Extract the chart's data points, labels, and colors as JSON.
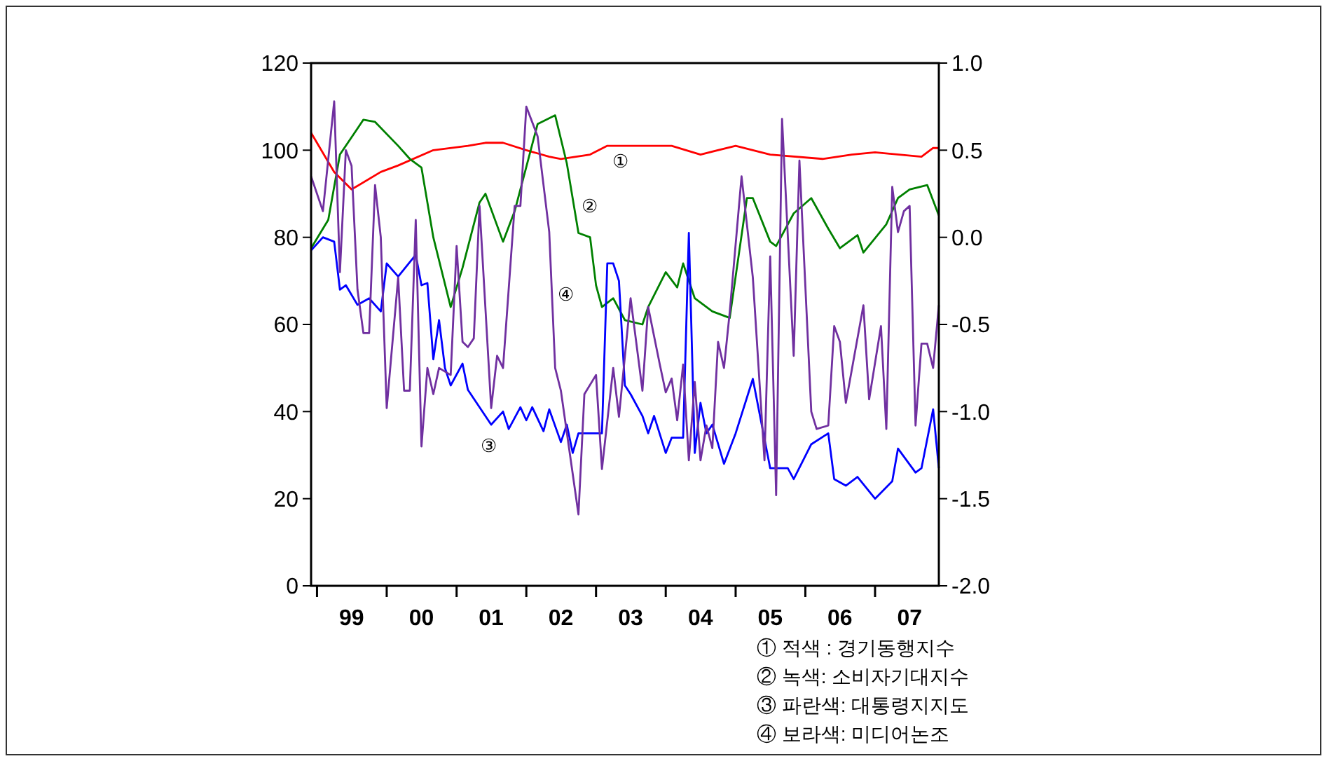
{
  "chart_data": {
    "type": "line",
    "xlim": [
      "1998-12",
      "2007-12"
    ],
    "xticks": [
      {
        "value": "1999-01",
        "label": null
      },
      {
        "value": "1999-07",
        "label": "99"
      },
      {
        "value": "2000-01",
        "label": null
      },
      {
        "value": "2000-07",
        "label": "00"
      },
      {
        "value": "2001-01",
        "label": null
      },
      {
        "value": "2001-07",
        "label": "01"
      },
      {
        "value": "2002-01",
        "label": null
      },
      {
        "value": "2002-07",
        "label": "02"
      },
      {
        "value": "2003-01",
        "label": null
      },
      {
        "value": "2003-07",
        "label": "03"
      },
      {
        "value": "2004-01",
        "label": null
      },
      {
        "value": "2004-07",
        "label": "04"
      },
      {
        "value": "2005-01",
        "label": null
      },
      {
        "value": "2005-07",
        "label": "05"
      },
      {
        "value": "2006-01",
        "label": null
      },
      {
        "value": "2006-07",
        "label": "06"
      },
      {
        "value": "2007-01",
        "label": null
      },
      {
        "value": "2007-07",
        "label": "07"
      }
    ],
    "ylim": [
      0,
      120
    ],
    "yticks": [
      0,
      20,
      40,
      60,
      80,
      100,
      120
    ],
    "y2lim": [
      -2,
      1
    ],
    "y2ticks": [
      {
        "value": -2,
        "label": "-2.0"
      },
      {
        "value": -1.5,
        "label": "-1.5"
      },
      {
        "value": -1,
        "label": "-1.0"
      },
      {
        "value": -0.5,
        "label": "-0.5"
      },
      {
        "value": 0,
        "label": "0.0"
      },
      {
        "value": 0.5,
        "label": "0.5"
      },
      {
        "value": 1,
        "label": "1.0"
      }
    ],
    "series": [
      {
        "name": "①",
        "color": "#ff0000",
        "x": [
          "1998-12",
          "1999-04",
          "1999-07",
          "1999-12",
          "2000-03",
          "2000-09",
          "2001-03",
          "2001-06",
          "2001-09",
          "2002-01",
          "2002-05",
          "2002-07",
          "2002-12",
          "2003-03",
          "2003-08",
          "2004-02",
          "2004-07",
          "2005-01",
          "2005-07",
          "2006-04",
          "2006-09",
          "2007-01",
          "2007-09",
          "2007-11",
          "2007-12"
        ],
        "values": [
          104,
          95,
          91,
          95,
          96.5,
          100,
          101,
          101.7,
          101.7,
          100,
          98.5,
          98,
          99,
          101,
          101,
          101,
          99,
          101,
          99,
          98,
          99,
          99.5,
          98.5,
          100.5,
          100.5
        ]
      },
      {
        "name": "②",
        "color": "#008000",
        "x": [
          "1998-12",
          "1999-03",
          "1999-05",
          "1999-09",
          "1999-11",
          "2000-03",
          "2000-05",
          "2000-07",
          "2000-09",
          "2000-12",
          "2001-02",
          "2001-05",
          "2001-06",
          "2001-09",
          "2001-11",
          "2002-03",
          "2002-06",
          "2002-08",
          "2002-10",
          "2002-12",
          "2003-01",
          "2003-02",
          "2003-04",
          "2003-06",
          "2003-09",
          "2003-10",
          "2004-01",
          "2004-03",
          "2004-04",
          "2004-06",
          "2004-09",
          "2004-12",
          "2005-01",
          "2005-03",
          "2005-04",
          "2005-07",
          "2005-08",
          "2005-11",
          "2006-02",
          "2006-05",
          "2006-07",
          "2006-10",
          "2006-11",
          "2007-03",
          "2007-05",
          "2007-07",
          "2007-10",
          "2007-12"
        ],
        "values": [
          77.5,
          84,
          99,
          107,
          106.5,
          101,
          98,
          96,
          80,
          64,
          73,
          88,
          90,
          79,
          86,
          106,
          108,
          97,
          81,
          80,
          69,
          64,
          66,
          61,
          60,
          64,
          72,
          68.5,
          74,
          66,
          63,
          61.5,
          71,
          89,
          89,
          79,
          78,
          85.5,
          89,
          82,
          77.5,
          80.5,
          76.5,
          83,
          89,
          91,
          92,
          85
        ]
      },
      {
        "name": "③",
        "color": "#0000ff",
        "x": [
          "1998-12",
          "1999-02",
          "1999-04",
          "1999-05",
          "1999-06",
          "1999-08",
          "1999-10",
          "1999-12",
          "2000-01",
          "2000-03",
          "2000-06",
          "2000-07",
          "2000-08",
          "2000-09",
          "2000-10",
          "2000-11",
          "2000-12",
          "2001-02",
          "2001-03",
          "2001-07",
          "2001-09",
          "2001-10",
          "2001-12",
          "2002-01",
          "2002-02",
          "2002-04",
          "2002-05",
          "2002-07",
          "2002-08",
          "2002-09",
          "2002-10",
          "2003-02",
          "2003-03",
          "2003-04",
          "2003-05",
          "2003-06",
          "2003-07",
          "2003-09",
          "2003-10",
          "2003-11",
          "2004-01",
          "2004-02",
          "2004-04",
          "2004-05",
          "2004-06",
          "2004-07",
          "2004-08",
          "2004-09",
          "2004-11",
          "2005-01",
          "2005-04",
          "2005-07",
          "2005-10",
          "2005-11",
          "2006-02",
          "2006-05",
          "2006-06",
          "2006-08",
          "2006-10",
          "2007-01",
          "2007-04",
          "2007-05",
          "2007-08",
          "2007-09",
          "2007-11",
          "2007-12"
        ],
        "values": [
          77,
          80,
          79,
          68,
          69,
          64.5,
          66,
          63,
          74,
          71,
          76,
          69,
          69.5,
          52,
          61,
          50,
          46,
          51,
          45,
          37,
          40,
          36,
          41,
          38,
          41,
          35.5,
          40.5,
          33,
          37,
          30.5,
          35,
          35,
          74,
          74,
          70,
          46,
          44,
          39,
          35,
          39,
          30.5,
          34,
          34,
          81,
          30.5,
          42,
          35,
          37,
          28,
          35,
          47.5,
          27,
          27,
          24.5,
          32.5,
          35,
          24.5,
          23,
          25,
          20,
          24,
          31.5,
          26,
          27,
          40.5,
          27
        ]
      },
      {
        "name": "④",
        "color": "#7030a0",
        "axis": "y2",
        "x": [
          "1998-12",
          "1999-02",
          "1999-04",
          "1999-05",
          "1999-06",
          "1999-07",
          "1999-08",
          "1999-09",
          "1999-10",
          "1999-11",
          "1999-12",
          "2000-01",
          "2000-03",
          "2000-04",
          "2000-05",
          "2000-06",
          "2000-07",
          "2000-08",
          "2000-09",
          "2000-10",
          "2000-12",
          "2001-01",
          "2001-02",
          "2001-03",
          "2001-04",
          "2001-05",
          "2001-07",
          "2001-08",
          "2001-09",
          "2001-11",
          "2001-12",
          "2002-01",
          "2002-03",
          "2002-05",
          "2002-06",
          "2002-07",
          "2002-10",
          "2002-11",
          "2003-01",
          "2003-02",
          "2003-04",
          "2003-05",
          "2003-07",
          "2003-09",
          "2003-10",
          "2003-12",
          "2004-01",
          "2004-02",
          "2004-03",
          "2004-04",
          "2004-05",
          "2004-06",
          "2004-07",
          "2004-08",
          "2004-09",
          "2004-10",
          "2004-11",
          "2004-12",
          "2005-02",
          "2005-04",
          "2005-06",
          "2005-07",
          "2005-08",
          "2005-09",
          "2005-11",
          "2005-12",
          "2006-02",
          "2006-03",
          "2006-05",
          "2006-06",
          "2006-07",
          "2006-08",
          "2006-11",
          "2006-12",
          "2007-02",
          "2007-03",
          "2007-04",
          "2007-05",
          "2007-06",
          "2007-07",
          "2007-08",
          "2007-09",
          "2007-10",
          "2007-11",
          "2007-12"
        ],
        "values": [
          0.35,
          0.15,
          0.78,
          -0.2,
          0.5,
          0.41,
          -0.3,
          -0.55,
          -0.55,
          0.3,
          0,
          -0.98,
          -0.23,
          -0.88,
          -0.88,
          0.1,
          -1.2,
          -0.75,
          -0.9,
          -0.75,
          -0.79,
          -0.05,
          -0.6,
          -0.63,
          -0.58,
          0.18,
          -0.98,
          -0.68,
          -0.75,
          0.18,
          0.18,
          0.75,
          0.58,
          0.03,
          -0.75,
          -0.88,
          -1.59,
          -0.9,
          -0.79,
          -1.33,
          -0.75,
          -1.03,
          -0.35,
          -0.88,
          -0.4,
          -0.73,
          -0.89,
          -0.81,
          -1.05,
          -0.73,
          -1.28,
          -0.83,
          -1.28,
          -1.08,
          -1.21,
          -0.6,
          -0.75,
          -0.43,
          0.35,
          -0.23,
          -1.28,
          -0.11,
          -1.48,
          0.68,
          -0.68,
          0.44,
          -1,
          -1.1,
          -1.08,
          -0.51,
          -0.6,
          -0.95,
          -0.39,
          -0.93,
          -0.51,
          -1.1,
          0.29,
          0.03,
          0.15,
          0.18,
          -1.08,
          -0.61,
          -0.61,
          -0.75,
          -0.39
        ]
      }
    ],
    "annotations": [
      "① 적색 : 경기동행지수",
      "② 녹색: 소비자기대지수",
      "③ 파란색: 대통령지지도",
      "④ 보라색: 미디어논조"
    ]
  }
}
